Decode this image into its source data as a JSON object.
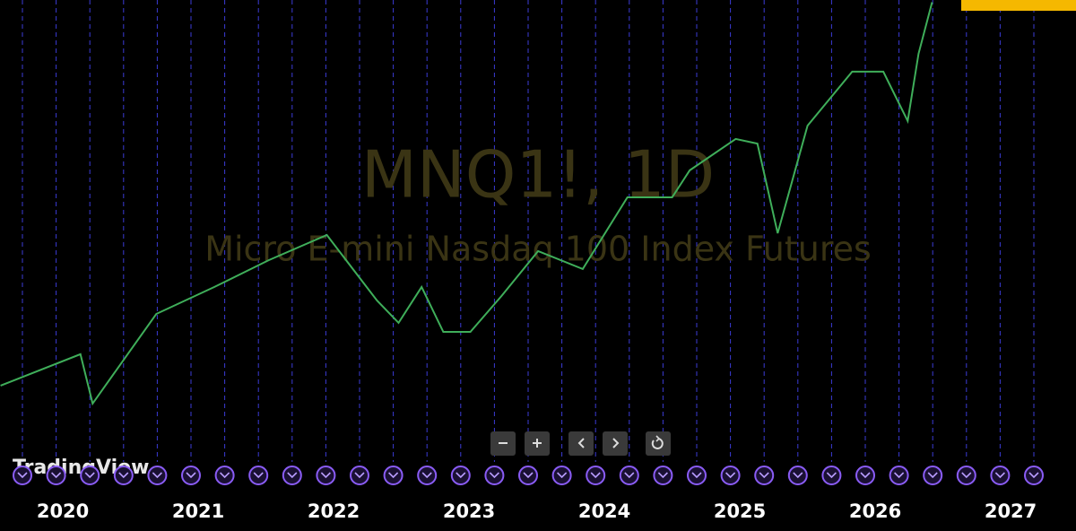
{
  "chart_data": {
    "type": "line",
    "title": "MNQ1!, 1D",
    "subtitle": "Micro E-mini Nasdaq 100 Index Futures",
    "x": [
      2019.54,
      2020.13,
      2020.22,
      2020.69,
      2021.12,
      2021.52,
      2021.95,
      2022.32,
      2022.48,
      2022.65,
      2022.81,
      2023.01,
      2023.24,
      2023.51,
      2023.84,
      2024.17,
      2024.5,
      2024.63,
      2024.97,
      2025.13,
      2025.28,
      2025.5,
      2025.83,
      2026.06,
      2026.24,
      2026.32,
      2026.42
    ],
    "values": [
      9570,
      10990,
      8760,
      12810,
      14030,
      15240,
      16380,
      13420,
      12410,
      14030,
      12000,
      12000,
      13620,
      15650,
      14840,
      18080,
      18080,
      19300,
      20720,
      20510,
      16460,
      21320,
      23760,
      23760,
      21530,
      24570,
      26900
    ],
    "color": "#3fae5a",
    "xlim": [
      2019.536,
      2027.483
    ],
    "xticks": [
      2020,
      2021,
      2022,
      2023,
      2024,
      2025,
      2026,
      2027
    ],
    "ylim": [
      3000,
      27000
    ]
  },
  "logo": "TradingView"
}
